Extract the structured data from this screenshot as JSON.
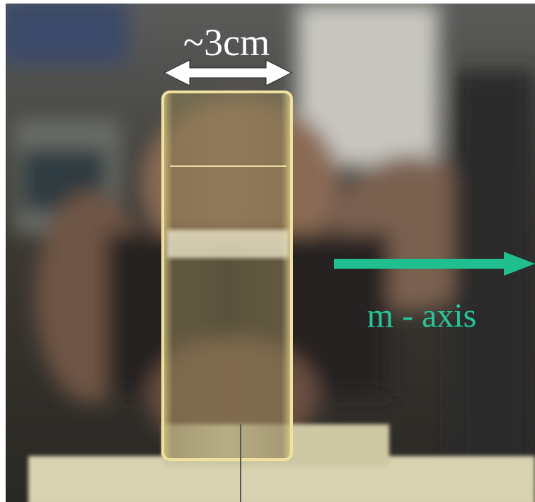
{
  "annotations": {
    "width_label": "~3cm",
    "axis_label": "m - axis"
  }
}
